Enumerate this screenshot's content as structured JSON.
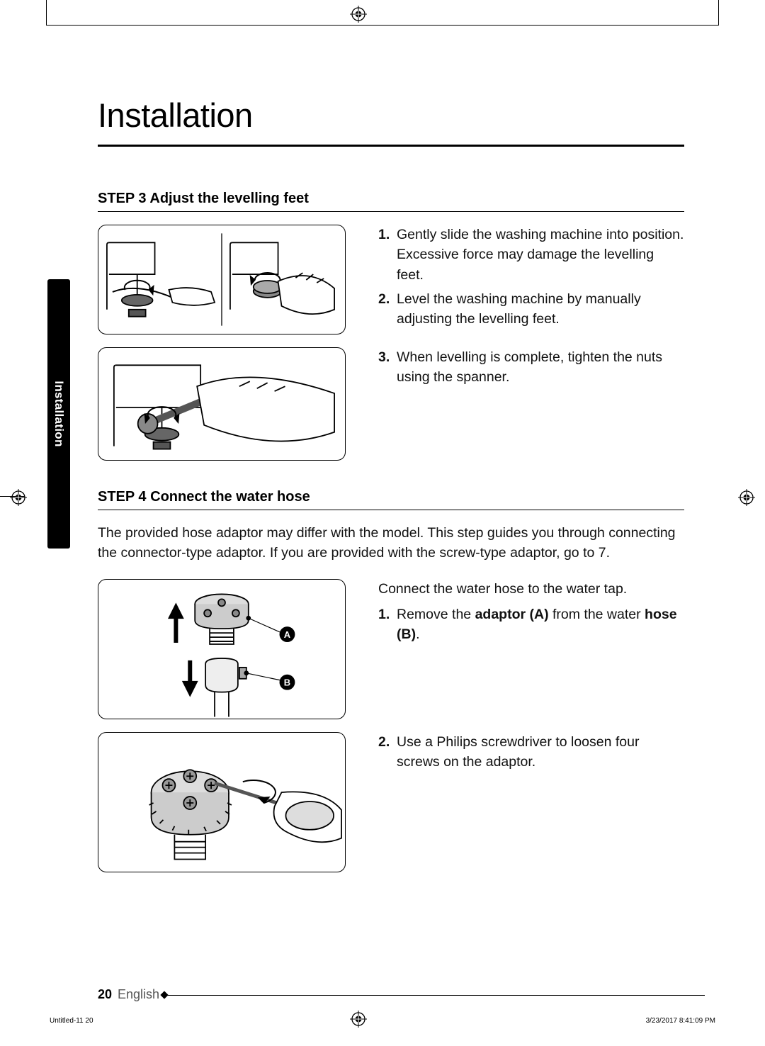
{
  "side_tab": {
    "label": "Installation"
  },
  "title": "Installation",
  "step3": {
    "heading_prefix": "STEP 3",
    "heading_text": "Adjust the levelling feet",
    "items": [
      {
        "n": "1.",
        "text": "Gently slide the washing machine into position. Excessive force may damage the levelling feet."
      },
      {
        "n": "2.",
        "text": "Level the washing machine by manually adjusting the levelling feet."
      },
      {
        "n": "3.",
        "text": "When levelling is complete, tighten the nuts using the spanner."
      }
    ],
    "illus1_height": 155,
    "illus2_height": 160
  },
  "step4": {
    "heading_prefix": "STEP 4",
    "heading_text": "Connect the water hose",
    "intro": "The provided hose adaptor may differ with the model. This step guides you through connecting the connector-type adaptor. If you are provided with the screw-type adaptor, go to 7.",
    "lead": "Connect the water hose to the water tap.",
    "items": [
      {
        "n": "1.",
        "html": "Remove the <b>adaptor (A)</b> from the water <b>hose (B)</b>."
      },
      {
        "n": "2.",
        "text": "Use a Philips screwdriver to loosen four screws on the adaptor."
      }
    ],
    "labelA": "A",
    "labelB": "B",
    "illus1_height": 198,
    "illus2_height": 198
  },
  "footer": {
    "page_number": "20",
    "language": "English"
  },
  "print": {
    "left": "Untitled-11   20",
    "right": "3/23/2017   8:41:09 PM"
  }
}
